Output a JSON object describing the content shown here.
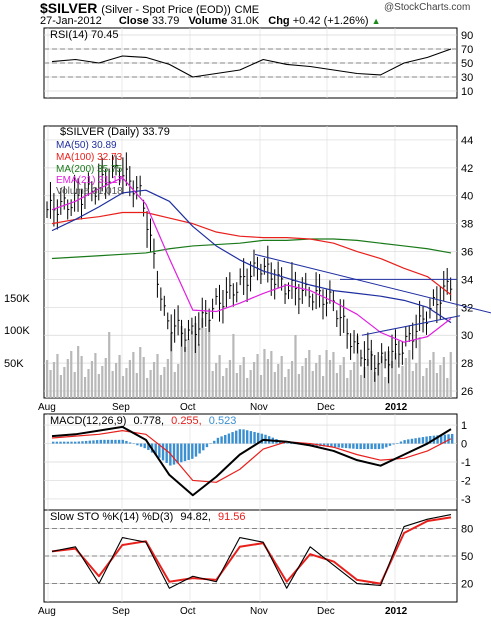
{
  "header": {
    "symbol": "$SILVER",
    "description": "(Silver - Spot Price (EOD))",
    "exchange": "CME",
    "watermark": "@StockCharts.com",
    "date": "27-Jan-2012",
    "close_label": "Close",
    "close_value": "33.79",
    "volume_label": "Volume",
    "volume_value": "31.0K",
    "chg_label": "Chg",
    "chg_value": "+0.42 (+1.26%)"
  },
  "colors": {
    "price_bars": "#000000",
    "ma50": "#1f2fa0",
    "ma100": "#e8201c",
    "ma200": "#1a7a1a",
    "ema21": "#e020e0",
    "volume": "#b8b8b8",
    "macd_line": "#000000",
    "macd_signal": "#e8201c",
    "macd_hist": "#3a8fd0",
    "sto_k": "#000000",
    "sto_d": "#e8201c",
    "trendline": "#1f2fa0"
  },
  "chart_data": [
    {
      "type": "line",
      "name": "RSI panel",
      "label": "RSI(14) 70.45",
      "y_ticks": [
        90,
        70,
        50,
        30,
        10
      ],
      "ylim": [
        0,
        100
      ],
      "reference_lines": [
        70,
        50,
        30
      ],
      "x": [
        "Aug",
        "Aug",
        "Aug",
        "Sep",
        "Sep",
        "Sep",
        "Oct",
        "Oct",
        "Oct",
        "Nov",
        "Nov",
        "Nov",
        "Dec",
        "Dec",
        "Dec",
        "Jan",
        "Jan",
        "Jan"
      ],
      "values": [
        52,
        55,
        50,
        60,
        58,
        48,
        30,
        35,
        40,
        55,
        48,
        45,
        40,
        35,
        33,
        50,
        58,
        70
      ]
    },
    {
      "type": "line",
      "name": "Price panel",
      "label": "$SILVER (Daily) 33.79",
      "legend": [
        {
          "name": "MA(50) 30.89",
          "color": "#1f2fa0"
        },
        {
          "name": "MA(100) 32.73",
          "color": "#e8201c"
        },
        {
          "name": "MA(200) 35.75",
          "color": "#1a7a1a"
        },
        {
          "name": "EMA(21) 31.17",
          "color": "#e020e0"
        },
        {
          "name": "Volume 31,018",
          "color": "#b8b8b8"
        }
      ],
      "y_ticks": [
        44,
        42,
        40,
        38,
        36,
        34,
        32,
        30,
        28,
        26
      ],
      "ylim": [
        25.5,
        45
      ],
      "volume_ticks": [
        "150K",
        "100K",
        "50K"
      ],
      "x_labels": [
        "Aug",
        "Sep",
        "Oct",
        "Nov",
        "Dec",
        "2012"
      ],
      "series": [
        {
          "name": "MA(200)",
          "values": [
            35.5,
            35.6,
            35.7,
            35.8,
            35.9,
            36.2,
            36.4,
            36.5,
            36.6,
            36.8,
            36.8,
            36.9,
            36.9,
            36.8,
            36.6,
            36.4,
            36.2,
            35.9
          ]
        },
        {
          "name": "MA(100)",
          "values": [
            38.0,
            38.3,
            38.5,
            38.8,
            38.8,
            38.4,
            38.0,
            37.4,
            37.1,
            37.0,
            37.0,
            36.9,
            36.6,
            36.0,
            35.5,
            34.8,
            34.2,
            32.9
          ]
        },
        {
          "name": "MA(50)",
          "values": [
            37.5,
            38.3,
            39.2,
            40.2,
            40.4,
            39.6,
            37.8,
            36.4,
            35.4,
            34.6,
            34.1,
            33.6,
            33.2,
            33.0,
            32.8,
            32.5,
            32.0,
            30.9
          ]
        },
        {
          "name": "EMA(21)",
          "values": [
            39.0,
            39.6,
            40.5,
            41.3,
            39.4,
            35.5,
            31.8,
            31.7,
            32.3,
            33.0,
            33.6,
            33.2,
            32.4,
            31.5,
            30.2,
            29.5,
            29.9,
            31.2
          ]
        },
        {
          "name": "Price (close)",
          "values": [
            39.0,
            39.5,
            40.5,
            42.0,
            40.0,
            31.0,
            30.0,
            32.0,
            33.5,
            35.0,
            33.5,
            33.0,
            32.5,
            29.0,
            28.0,
            29.2,
            31.5,
            33.8
          ]
        }
      ]
    },
    {
      "type": "line",
      "name": "MACD panel",
      "label_main": "MACD(12,26,9)",
      "label_macd": "0.778,",
      "label_signal": "0.255,",
      "label_hist": "0.523",
      "y_ticks": [
        1,
        0,
        -1,
        -2,
        -3
      ],
      "ylim": [
        -3.6,
        1.6
      ],
      "x_labels": [
        "Aug",
        "Sep",
        "Oct",
        "Nov",
        "Dec",
        "2012"
      ],
      "series": [
        {
          "name": "MACD",
          "values": [
            0.4,
            0.5,
            0.7,
            0.9,
            0.2,
            -1.7,
            -2.8,
            -1.8,
            -0.6,
            0.2,
            0.1,
            -0.1,
            -0.4,
            -0.9,
            -1.2,
            -0.6,
            0.0,
            0.78
          ]
        },
        {
          "name": "Signal",
          "values": [
            0.3,
            0.4,
            0.5,
            0.7,
            0.5,
            -0.5,
            -2.0,
            -2.1,
            -1.4,
            -0.3,
            0.1,
            0.0,
            -0.2,
            -0.6,
            -0.9,
            -0.8,
            -0.4,
            0.26
          ]
        },
        {
          "name": "Histogram",
          "values": [
            0.1,
            0.1,
            0.2,
            0.2,
            -0.3,
            -1.2,
            -0.8,
            0.3,
            0.8,
            0.5,
            0.0,
            -0.1,
            -0.2,
            -0.3,
            -0.3,
            0.2,
            0.4,
            0.52
          ]
        }
      ]
    },
    {
      "type": "line",
      "name": "Stochastic panel",
      "label_main": "Slow STO %K(14) %D(3)",
      "label_k": "94.82,",
      "label_d": "91.56",
      "y_ticks": [
        80,
        50,
        20
      ],
      "ylim": [
        0,
        100
      ],
      "reference_lines": [
        80,
        50,
        20
      ],
      "x_labels": [
        "Aug",
        "Sep",
        "Oct",
        "Nov",
        "Dec",
        "2012"
      ],
      "series": [
        {
          "name": "%K",
          "values": [
            55,
            60,
            20,
            70,
            65,
            15,
            28,
            22,
            70,
            65,
            15,
            60,
            40,
            20,
            18,
            82,
            90,
            95
          ]
        },
        {
          "name": "%D",
          "values": [
            55,
            58,
            28,
            62,
            66,
            22,
            26,
            24,
            60,
            64,
            22,
            52,
            44,
            24,
            20,
            75,
            88,
            92
          ]
        }
      ]
    }
  ]
}
